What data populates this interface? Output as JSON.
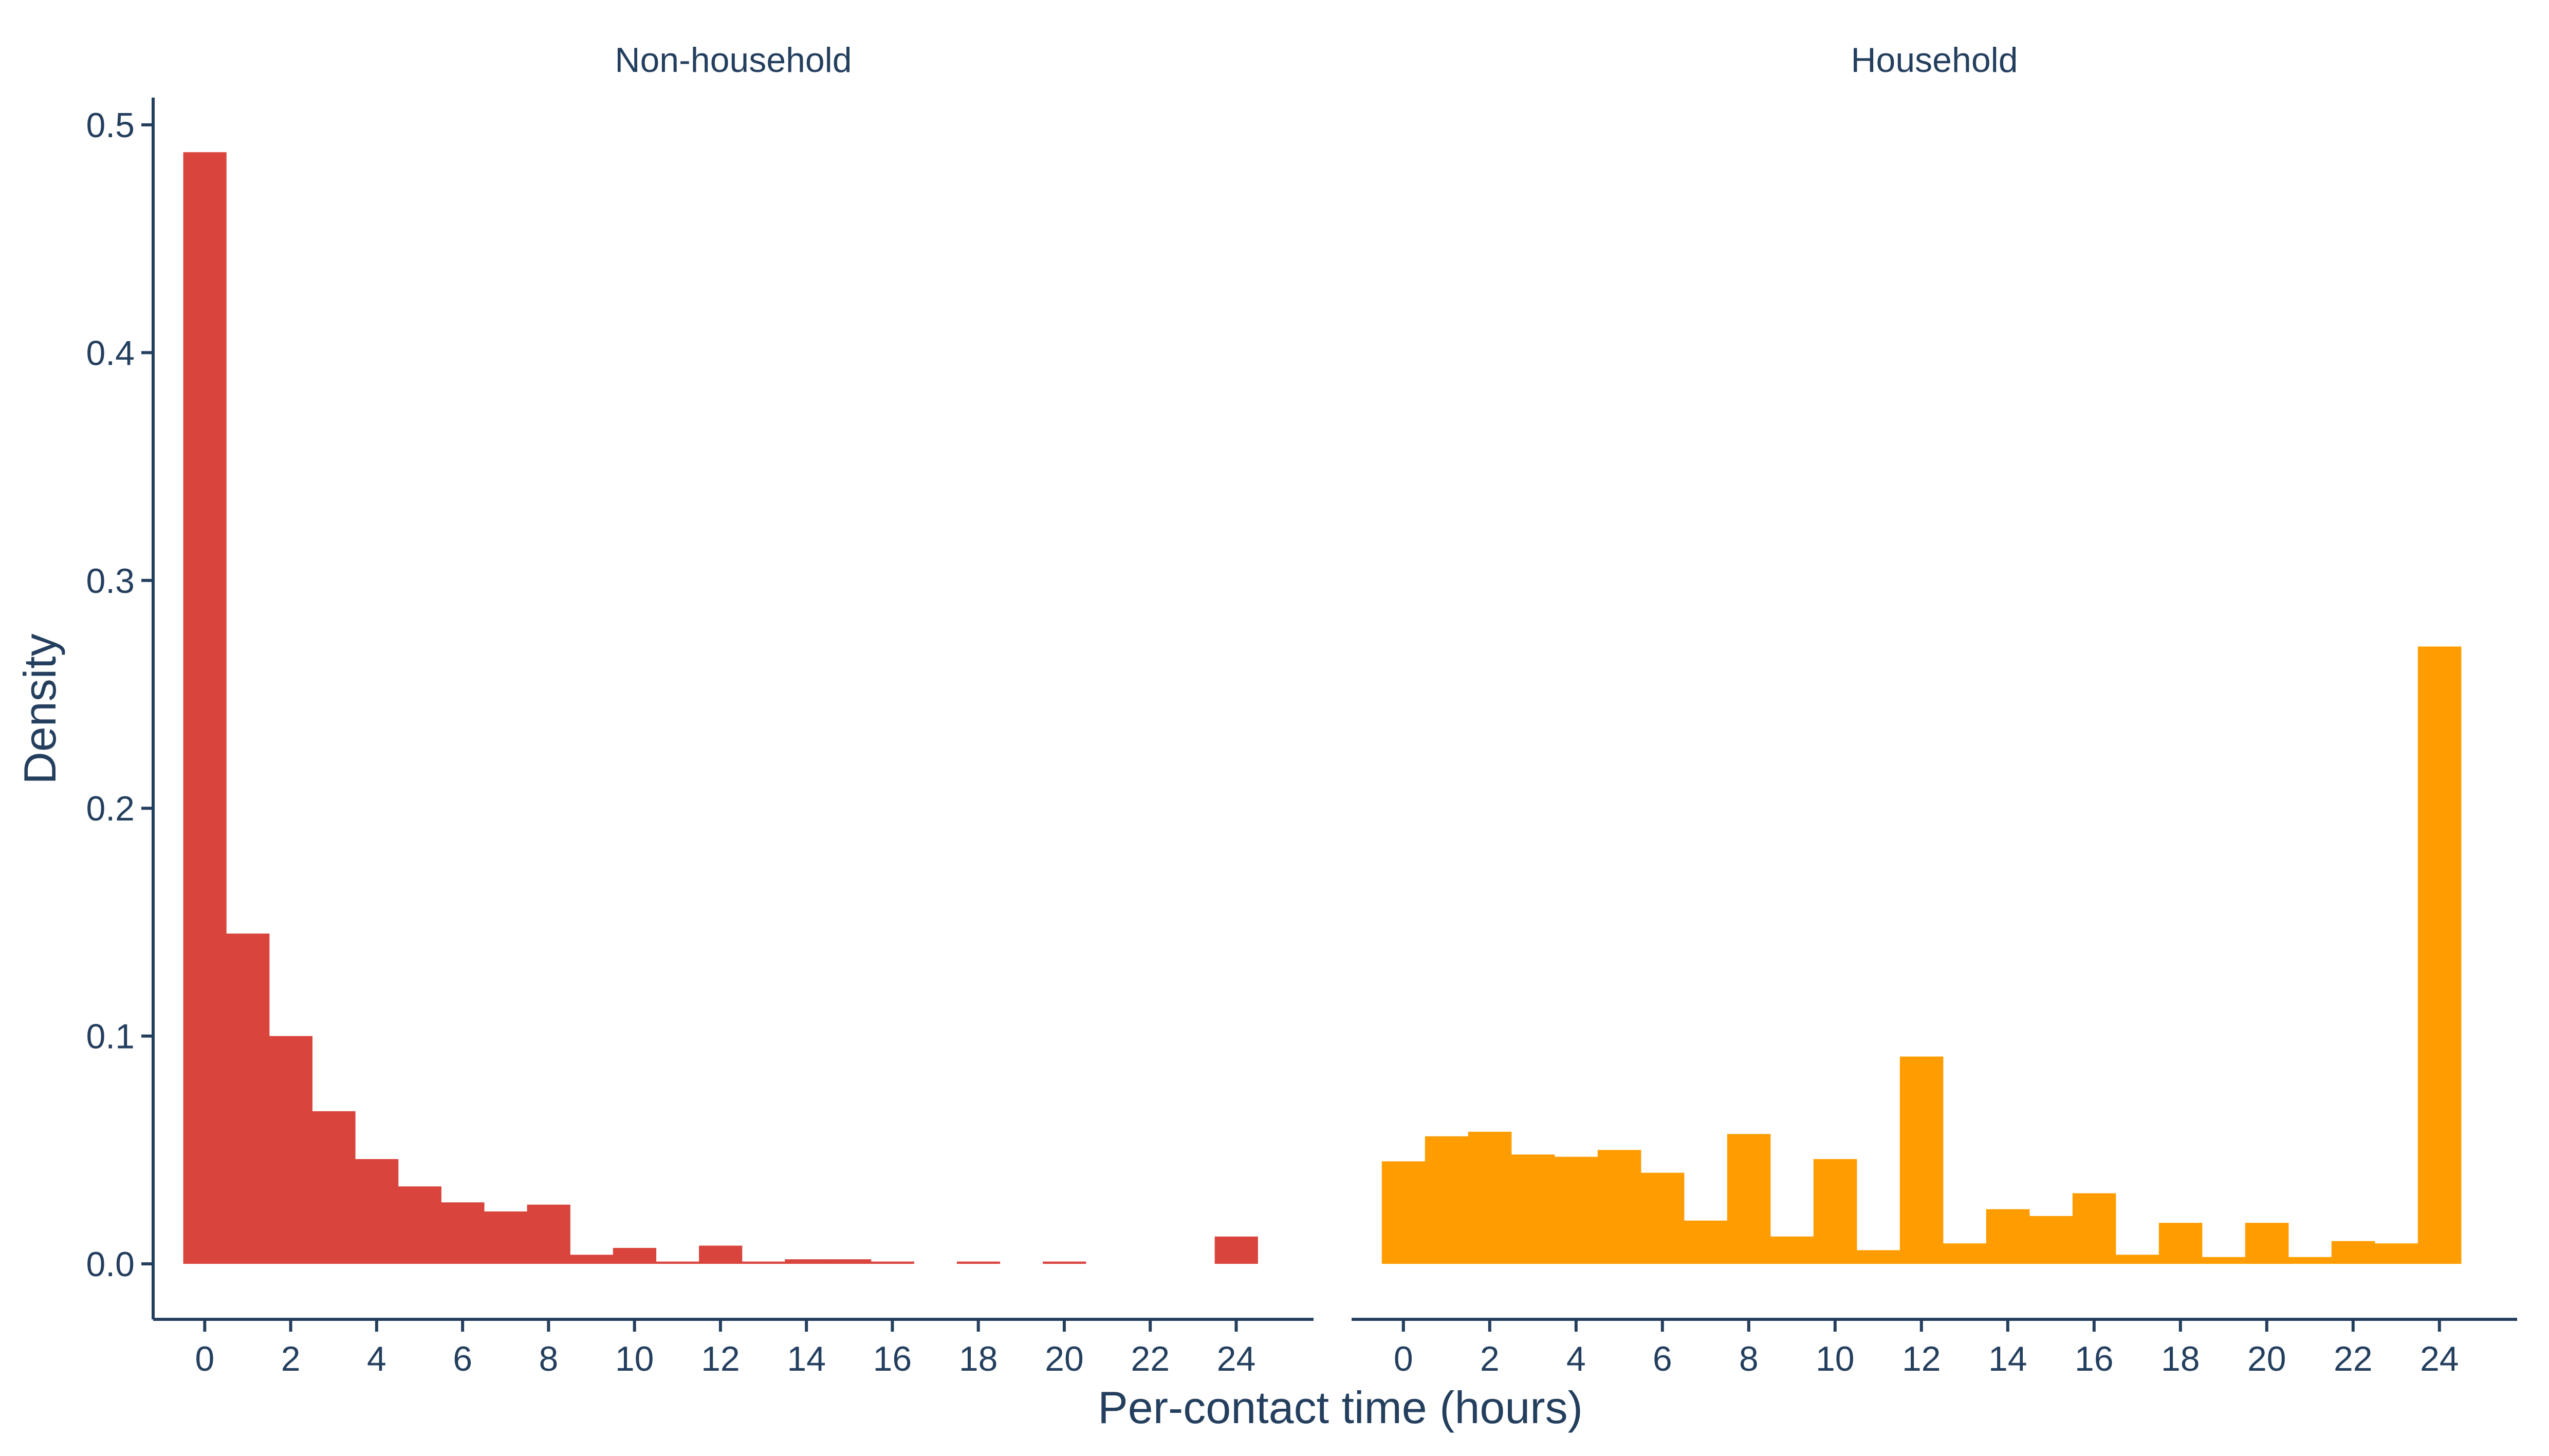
{
  "chart_data": {
    "type": "bar",
    "ylabel": "Density",
    "xlabel": "Per-contact time (hours)",
    "ylim": [
      0,
      0.51
    ],
    "xlim": [
      -1.2,
      25.8
    ],
    "y_ticks": [
      0.0,
      0.1,
      0.2,
      0.3,
      0.4,
      0.5
    ],
    "y_tick_labels": [
      "0.0",
      "0.1",
      "0.2",
      "0.3",
      "0.4",
      "0.5"
    ],
    "x_ticks": [
      0,
      2,
      4,
      6,
      8,
      10,
      12,
      14,
      16,
      18,
      20,
      22,
      24
    ],
    "grid": false,
    "legend": "none",
    "bin_width": 1,
    "bin_centers": [
      0,
      1,
      2,
      3,
      4,
      5,
      6,
      7,
      8,
      9,
      10,
      11,
      12,
      13,
      14,
      15,
      16,
      17,
      18,
      19,
      20,
      21,
      22,
      23,
      24
    ],
    "panels": [
      {
        "label": "Non-household",
        "color": "#d9453d",
        "values": [
          0.488,
          0.145,
          0.1,
          0.067,
          0.046,
          0.034,
          0.027,
          0.023,
          0.026,
          0.004,
          0.007,
          0.001,
          0.008,
          0.001,
          0.002,
          0.002,
          0.001,
          0.0,
          0.001,
          0.0,
          0.001,
          0.0,
          0.0,
          0.0,
          0.012
        ]
      },
      {
        "label": "Household",
        "color": "#ff9d00",
        "values": [
          0.045,
          0.056,
          0.058,
          0.048,
          0.047,
          0.05,
          0.04,
          0.019,
          0.057,
          0.012,
          0.046,
          0.006,
          0.091,
          0.009,
          0.024,
          0.021,
          0.031,
          0.004,
          0.018,
          0.003,
          0.018,
          0.003,
          0.01,
          0.009,
          0.271
        ]
      }
    ]
  }
}
